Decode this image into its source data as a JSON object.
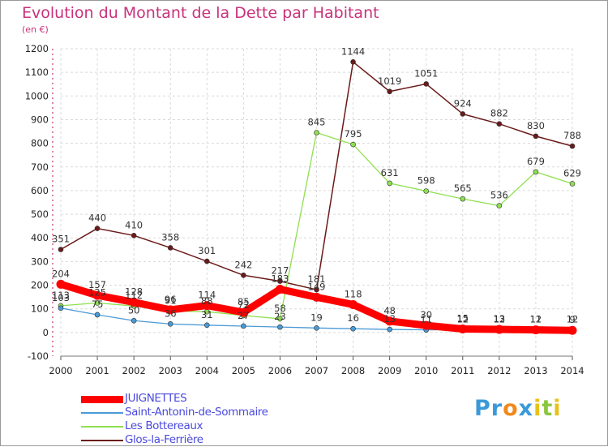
{
  "chart_data": {
    "type": "line",
    "title": "Evolution du Montant de la Dette par Habitant",
    "subtitle": "(en €)",
    "x": [
      "2000",
      "2001",
      "2002",
      "2003",
      "2004",
      "2005",
      "2006",
      "2007",
      "2008",
      "2009",
      "2010",
      "2011",
      "2012",
      "2013",
      "2014"
    ],
    "ylim": [
      -100,
      1200
    ],
    "yticks": [
      -100,
      0,
      100,
      200,
      300,
      400,
      500,
      600,
      700,
      800,
      900,
      1000,
      1100,
      1200
    ],
    "grid": true,
    "legend_position": "bottom-left",
    "series": [
      {
        "name": "JUIGNETTES",
        "color": "#ff0000",
        "values": [
          204,
          157,
          128,
          96,
          114,
          85,
          183,
          149,
          118,
          48,
          30,
          15,
          13,
          11,
          9
        ]
      },
      {
        "name": "Saint-Antonin-de-Sommaire",
        "color": "#4a9ad6",
        "values": [
          103,
          75,
          50,
          36,
          31,
          27,
          23,
          19,
          16,
          13,
          11,
          12,
          12,
          12,
          12
        ]
      },
      {
        "name": "Les Bottereaux",
        "color": "#8fe050",
        "values": [
          113,
          125,
          112,
          91,
          88,
          72,
          58,
          845,
          795,
          631,
          598,
          565,
          536,
          679,
          629
        ]
      },
      {
        "name": "Glos-la-Ferrière",
        "color": "#6b1a1a",
        "values": [
          351,
          440,
          410,
          358,
          301,
          242,
          217,
          181,
          1144,
          1019,
          1051,
          924,
          882,
          830,
          788
        ]
      }
    ]
  },
  "branding": {
    "logo_text": "Proxiti"
  }
}
